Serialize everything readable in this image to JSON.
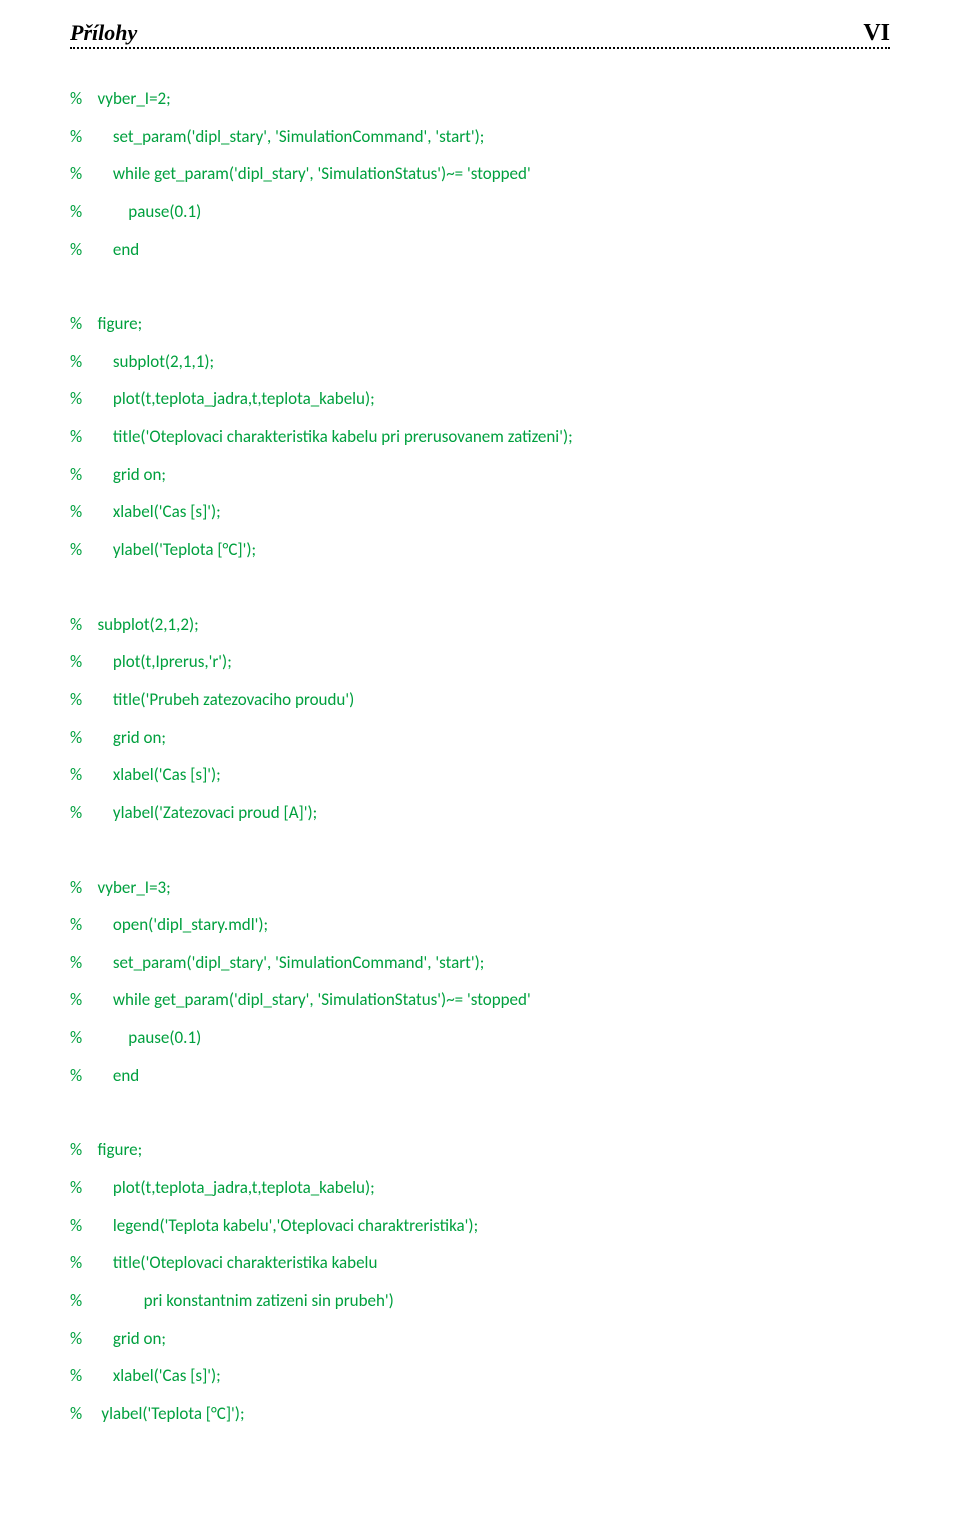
{
  "header": {
    "left": "Přílohy",
    "right": "VI"
  },
  "code": {
    "lines": [
      "%    vyber_I=2;",
      "%        set_param('dipl_stary', 'SimulationCommand', 'start');",
      "%        while get_param('dipl_stary', 'SimulationStatus')~= 'stopped'",
      "%            pause(0.1)",
      "%        end",
      "",
      "%    figure;",
      "%        subplot(2,1,1);",
      "%        plot(t,teplota_jadra,t,teplota_kabelu);",
      "%        title('Oteplovaci charakteristika kabelu pri prerusovanem zatizeni');",
      "%        grid on;",
      "%        xlabel('Cas [s]');",
      "%        ylabel('Teplota [°C]');",
      "",
      "%    subplot(2,1,2);",
      "%        plot(t,Iprerus,'r');",
      "%        title('Prubeh zatezovaciho proudu')",
      "%        grid on;",
      "%        xlabel('Cas [s]');",
      "%        ylabel('Zatezovaci proud [A]');",
      "",
      "%    vyber_I=3;",
      "%        open('dipl_stary.mdl');",
      "%        set_param('dipl_stary', 'SimulationCommand', 'start');",
      "%        while get_param('dipl_stary', 'SimulationStatus')~= 'stopped'",
      "%            pause(0.1)",
      "%        end",
      "",
      "%    figure;",
      "%        plot(t,teplota_jadra,t,teplota_kabelu);",
      "%        legend('Teplota kabelu','Oteplovaci charaktreristika');",
      "%        title('Oteplovaci charakteristika kabelu",
      "%                pri konstantnim zatizeni sin prubeh')",
      "%        grid on;",
      "%        xlabel('Cas [s]');",
      "%     ylabel('Teplota [°C]');"
    ]
  },
  "styling": {
    "code_color": "#00a03e",
    "text_color": "#000000",
    "background_color": "#ffffff",
    "code_font_family": "Calibri",
    "header_font_family": "Times New Roman",
    "code_fontsize": 17,
    "header_left_fontsize": 22,
    "header_right_fontsize": 24
  }
}
